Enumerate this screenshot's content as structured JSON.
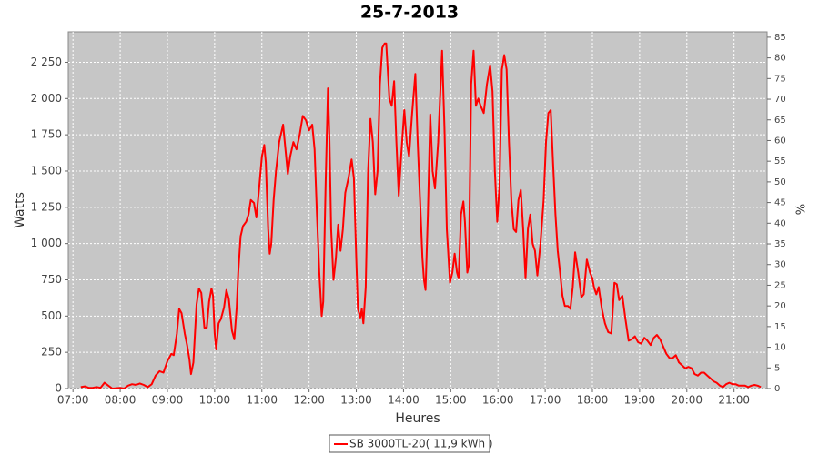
{
  "chart_data": {
    "type": "line",
    "title": "25-7-2013",
    "xlabel": "Heures",
    "ylabel": "Watts",
    "y2label": "%",
    "x": [
      "07:10",
      "07:15",
      "07:20",
      "07:25",
      "07:30",
      "07:35",
      "07:40",
      "07:45",
      "07:50",
      "08:00",
      "08:05",
      "08:10",
      "08:15",
      "08:20",
      "08:25",
      "08:30",
      "08:35",
      "08:40",
      "08:45",
      "08:50",
      "08:55",
      "09:00",
      "09:05",
      "09:08",
      "09:12",
      "09:15",
      "09:18",
      "09:22",
      "09:25",
      "09:28",
      "09:30",
      "09:33",
      "09:37",
      "09:40",
      "09:43",
      "09:47",
      "09:50",
      "09:53",
      "09:56",
      "09:58",
      "10:00",
      "10:02",
      "10:05",
      "10:08",
      "10:12",
      "10:15",
      "10:18",
      "10:22",
      "10:25",
      "10:28",
      "10:30",
      "10:33",
      "10:36",
      "10:40",
      "10:43",
      "10:46",
      "10:50",
      "10:53",
      "10:56",
      "11:00",
      "11:03",
      "11:05",
      "11:08",
      "11:10",
      "11:12",
      "11:15",
      "11:18",
      "11:22",
      "11:27",
      "11:30",
      "11:33",
      "11:36",
      "11:40",
      "11:44",
      "11:48",
      "11:52",
      "11:56",
      "12:00",
      "12:04",
      "12:07",
      "12:10",
      "12:13",
      "12:16",
      "12:18",
      "12:21",
      "12:24",
      "12:26",
      "12:28",
      "12:31",
      "12:34",
      "12:37",
      "12:40",
      "12:43",
      "12:46",
      "12:50",
      "12:54",
      "12:57",
      "13:00",
      "13:02",
      "13:05",
      "13:07",
      "13:09",
      "13:12",
      "13:15",
      "13:18",
      "13:21",
      "13:24",
      "13:27",
      "13:30",
      "13:33",
      "13:36",
      "13:38",
      "13:42",
      "13:45",
      "13:48",
      "13:51",
      "13:54",
      "13:57",
      "14:01",
      "14:04",
      "14:07",
      "14:11",
      "14:15",
      "14:18",
      "14:21",
      "14:24",
      "14:26",
      "14:28",
      "14:31",
      "14:34",
      "14:37",
      "14:40",
      "14:44",
      "14:49",
      "14:52",
      "14:55",
      "14:59",
      "15:02",
      "15:05",
      "15:08",
      "15:10",
      "15:13",
      "15:16",
      "15:18",
      "15:21",
      "15:23",
      "15:26",
      "15:29",
      "15:32",
      "15:35",
      "15:38",
      "15:42",
      "15:46",
      "15:50",
      "15:53",
      "15:56",
      "15:59",
      "16:02",
      "16:05",
      "16:08",
      "16:11",
      "16:14",
      "16:17",
      "16:20",
      "16:23",
      "16:26",
      "16:29",
      "16:32",
      "16:35",
      "16:38",
      "16:41",
      "16:44",
      "16:47",
      "16:50",
      "16:54",
      "16:58",
      "17:01",
      "17:04",
      "17:07",
      "17:10",
      "17:13",
      "17:16",
      "17:19",
      "17:22",
      "17:25",
      "17:29",
      "17:32",
      "17:35",
      "17:38",
      "17:42",
      "17:46",
      "17:49",
      "17:53",
      "17:57",
      "18:00",
      "18:02",
      "18:05",
      "18:08",
      "18:12",
      "18:16",
      "18:20",
      "18:24",
      "18:28",
      "18:31",
      "18:34",
      "18:38",
      "18:42",
      "18:46",
      "18:50",
      "18:54",
      "18:58",
      "19:02",
      "19:06",
      "19:10",
      "19:14",
      "19:18",
      "19:22",
      "19:26",
      "19:30",
      "19:34",
      "19:38",
      "19:42",
      "19:46",
      "19:50",
      "19:54",
      "19:58",
      "20:02",
      "20:06",
      "20:10",
      "20:14",
      "20:18",
      "20:22",
      "20:26",
      "20:30",
      "20:34",
      "20:38",
      "20:42",
      "20:46",
      "20:50",
      "20:54",
      "20:58",
      "21:02",
      "21:06",
      "21:10",
      "21:14",
      "21:18",
      "21:22",
      "21:26",
      "21:30",
      "21:34"
    ],
    "series": [
      {
        "name": "SB 3000TL-20( 11,9 kWh )",
        "color": "#ff0000",
        "values": [
          10,
          15,
          5,
          5,
          10,
          5,
          40,
          20,
          0,
          5,
          0,
          20,
          30,
          25,
          35,
          25,
          10,
          30,
          90,
          120,
          110,
          190,
          240,
          230,
          380,
          550,
          520,
          380,
          300,
          200,
          100,
          180,
          580,
          690,
          660,
          420,
          420,
          600,
          690,
          640,
          380,
          270,
          450,
          480,
          560,
          680,
          620,
          400,
          340,
          560,
          800,
          1050,
          1120,
          1150,
          1200,
          1300,
          1280,
          1180,
          1350,
          1600,
          1680,
          1560,
          1100,
          930,
          1000,
          1300,
          1500,
          1700,
          1820,
          1650,
          1480,
          1600,
          1700,
          1650,
          1750,
          1880,
          1850,
          1780,
          1820,
          1650,
          1200,
          800,
          500,
          600,
          1400,
          2070,
          1700,
          1100,
          750,
          900,
          1130,
          950,
          1100,
          1350,
          1450,
          1580,
          1450,
          900,
          550,
          490,
          550,
          450,
          700,
          1500,
          1860,
          1700,
          1340,
          1500,
          2100,
          2350,
          2380,
          2380,
          2000,
          1950,
          2120,
          1700,
          1330,
          1600,
          1920,
          1700,
          1600,
          1900,
          2170,
          1700,
          1300,
          900,
          750,
          680,
          1200,
          1890,
          1500,
          1380,
          1700,
          2330,
          1800,
          1100,
          730,
          800,
          930,
          800,
          760,
          1200,
          1290,
          1150,
          800,
          850,
          2100,
          2330,
          1950,
          2000,
          1950,
          1900,
          2100,
          2230,
          2050,
          1500,
          1150,
          1400,
          2200,
          2300,
          2200,
          1700,
          1300,
          1100,
          1080,
          1300,
          1370,
          1100,
          760,
          1100,
          1200,
          1000,
          950,
          780,
          1000,
          1300,
          1700,
          1900,
          1920,
          1550,
          1200,
          950,
          800,
          640,
          570,
          570,
          550,
          700,
          940,
          800,
          630,
          650,
          890,
          800,
          760,
          700,
          650,
          700,
          550,
          450,
          390,
          380,
          730,
          720,
          610,
          640,
          480,
          330,
          340,
          360,
          320,
          310,
          350,
          330,
          300,
          350,
          370,
          340,
          290,
          240,
          210,
          210,
          230,
          180,
          160,
          140,
          150,
          140,
          100,
          90,
          110,
          110,
          90,
          70,
          50,
          40,
          20,
          10,
          30,
          40,
          30,
          30,
          20,
          20,
          20,
          10,
          20,
          25,
          20,
          10
        ]
      }
    ],
    "xlim": [
      "06:54",
      "21:42"
    ],
    "xticks": [
      "07:00",
      "08:00",
      "09:00",
      "10:00",
      "11:00",
      "12:00",
      "13:00",
      "14:00",
      "15:00",
      "16:00",
      "17:00",
      "18:00",
      "19:00",
      "20:00",
      "21:00"
    ],
    "ylim": [
      0,
      2460
    ],
    "yticks": [
      0,
      250,
      500,
      750,
      {
        "value": 1000,
        "label": "1 000"
      },
      {
        "value": 1250,
        "label": "1 250"
      },
      {
        "value": 1500,
        "label": "1 500"
      },
      {
        "value": 1750,
        "label": "1 750"
      },
      {
        "value": 2000,
        "label": "2 000"
      },
      {
        "value": 2250,
        "label": "2 250"
      }
    ],
    "y2lim": [
      0,
      86.3
    ],
    "y2ticks": [
      0,
      5,
      10,
      15,
      20,
      25,
      30,
      35,
      40,
      45,
      50,
      55,
      60,
      65,
      70,
      75,
      80,
      85
    ],
    "grid": true,
    "legend": "bottom"
  }
}
